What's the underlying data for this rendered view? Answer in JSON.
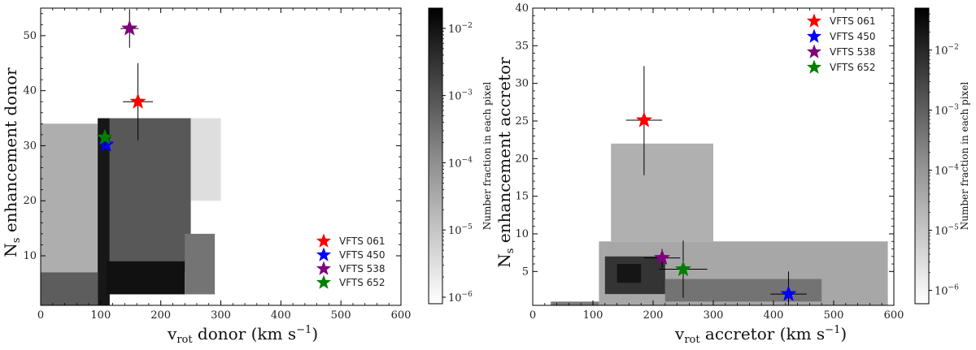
{
  "chart_data": [
    {
      "type": "heatmap",
      "xlabel_main": "v",
      "xlabel_sub": "rot",
      "xlabel_rest": " donor (km s",
      "xlabel_sup": "−1",
      "xlabel_end": ")",
      "ylabel_main": "N",
      "ylabel_sub": "s",
      "ylabel_rest": " enhancement donor",
      "xlim": [
        0,
        600
      ],
      "ylim": [
        1,
        55
      ],
      "xticks": [
        0,
        100,
        200,
        300,
        400,
        500,
        600
      ],
      "yticks": [
        10,
        20,
        30,
        40,
        50
      ],
      "density_regions": [
        {
          "x": [
            0,
            100
          ],
          "y": [
            7,
            34
          ],
          "value": 2e-05
        },
        {
          "x": [
            0,
            95
          ],
          "y": [
            1,
            7
          ],
          "value": 0.0005
        },
        {
          "x": [
            95,
            115
          ],
          "y": [
            1,
            35
          ],
          "value": 0.008
        },
        {
          "x": [
            115,
            250
          ],
          "y": [
            7,
            35
          ],
          "value": 0.0006
        },
        {
          "x": [
            110,
            240
          ],
          "y": [
            3,
            9
          ],
          "value": 0.01
        },
        {
          "x": [
            240,
            290
          ],
          "y": [
            3,
            14
          ],
          "value": 0.0002
        },
        {
          "x": [
            250,
            300
          ],
          "y": [
            20,
            35
          ],
          "value": 3e-06
        }
      ],
      "points": [
        {
          "label": "VFTS 061",
          "x": 162,
          "y": 38,
          "xerr": 25,
          "yerr_low": 7,
          "yerr_high": 7,
          "color": "#ff0000"
        },
        {
          "label": "VFTS 450",
          "x": 109,
          "y": 30.2,
          "xerr": 0,
          "yerr_low": 0,
          "yerr_high": 0,
          "color": "#0000ff"
        },
        {
          "label": "VFTS 538",
          "x": 148,
          "y": 51.3,
          "xerr": 15,
          "yerr_low": 3.5,
          "yerr_high": 3.5,
          "color": "#800080"
        },
        {
          "label": "VFTS 652",
          "x": 107,
          "y": 31.5,
          "xerr": 10,
          "yerr_low": 1.5,
          "yerr_high": 1.5,
          "color": "#008000"
        }
      ],
      "legend_placement": "lower-right",
      "colorbar": {
        "label": "Number fraction in each pixel",
        "scale": "log",
        "range": [
          8e-07,
          0.02
        ],
        "ticks": [
          {
            "exp": "−2",
            "value": 0.01
          },
          {
            "exp": "−3",
            "value": 0.001
          },
          {
            "exp": "−4",
            "value": 0.0001
          },
          {
            "exp": "−5",
            "value": 1e-05
          },
          {
            "exp": "−6",
            "value": 1e-06
          }
        ],
        "tick_base": "10"
      }
    },
    {
      "type": "heatmap",
      "xlabel_main": "v",
      "xlabel_sub": "rot",
      "xlabel_rest": " accretor (km s",
      "xlabel_sup": "−1",
      "xlabel_end": ")",
      "ylabel_main": "N",
      "ylabel_sub": "s",
      "ylabel_rest": " enhancement accretor",
      "xlim": [
        0,
        600
      ],
      "ylim": [
        0.5,
        40
      ],
      "xticks": [
        0,
        100,
        200,
        300,
        400,
        500,
        600
      ],
      "yticks": [
        5,
        10,
        15,
        20,
        25,
        30,
        35,
        40
      ],
      "density_regions": [
        {
          "x": [
            30,
            110
          ],
          "y": [
            0.5,
            1
          ],
          "value": 0.0002
        },
        {
          "x": [
            110,
            590
          ],
          "y": [
            0.5,
            9
          ],
          "value": 3e-05
        },
        {
          "x": [
            130,
            300
          ],
          "y": [
            9,
            22
          ],
          "value": 2e-05
        },
        {
          "x": [
            120,
            220
          ],
          "y": [
            2,
            7
          ],
          "value": 0.005
        },
        {
          "x": [
            140,
            180
          ],
          "y": [
            3.5,
            6
          ],
          "value": 0.02
        },
        {
          "x": [
            220,
            480
          ],
          "y": [
            1,
            4
          ],
          "value": 0.0003
        }
      ],
      "points": [
        {
          "label": "VFTS 061",
          "x": 185,
          "y": 25.1,
          "xerr": 30,
          "yerr_low": 7.3,
          "yerr_high": 7.2,
          "color": "#ff0000"
        },
        {
          "label": "VFTS 450",
          "x": 425,
          "y": 2,
          "xerr": 30,
          "yerr_low": 1.5,
          "yerr_high": 3,
          "color": "#0000ff"
        },
        {
          "label": "VFTS 538",
          "x": 215,
          "y": 6.8,
          "xerr": 30,
          "yerr_low": 1.3,
          "yerr_high": 1.2,
          "color": "#800080"
        },
        {
          "label": "VFTS 652",
          "x": 250,
          "y": 5.3,
          "xerr": 40,
          "yerr_low": 3.8,
          "yerr_high": 3.8,
          "color": "#008000"
        }
      ],
      "legend_placement": "upper-right",
      "colorbar": {
        "label": "Number fraction in each pixel",
        "scale": "log",
        "range": [
          6e-07,
          0.05
        ],
        "ticks": [
          {
            "exp": "−2",
            "value": 0.01
          },
          {
            "exp": "−3",
            "value": 0.001
          },
          {
            "exp": "−4",
            "value": 0.0001
          },
          {
            "exp": "−5",
            "value": 1e-05
          },
          {
            "exp": "−6",
            "value": 1e-06
          }
        ],
        "tick_base": "10"
      }
    }
  ]
}
